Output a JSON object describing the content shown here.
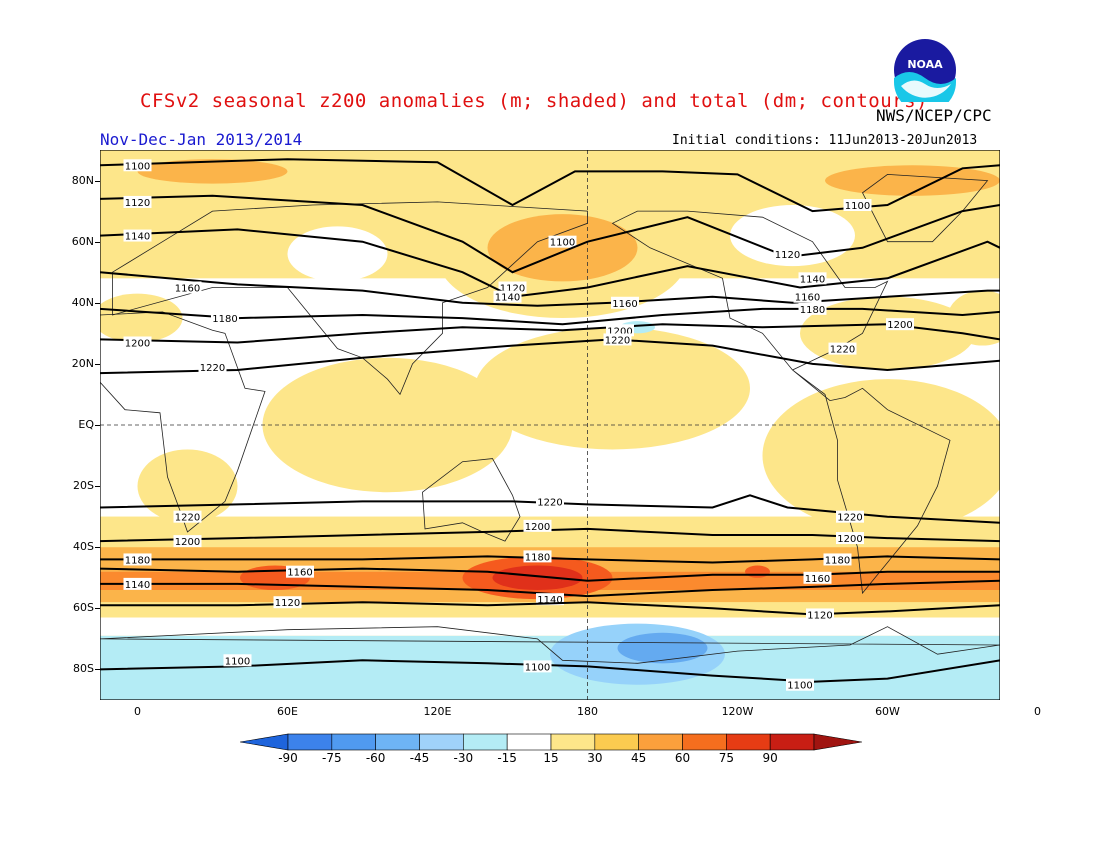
{
  "header": {
    "title": "CFSv2 seasonal z200 anomalies (m; shaded) and total (dm; contours)",
    "agency": "NWS/NCEP/CPC",
    "season": "Nov-Dec-Jan 2013/2014",
    "initial_conditions": "Initial conditions: 11Jun2013-20Jun2013",
    "logo_text": "NOAA"
  },
  "map": {
    "projection": "cylindrical equidistant",
    "lon_range": [
      -15,
      345
    ],
    "lat_range": [
      -90,
      90
    ],
    "lat_ticks": [
      {
        "lat": 80,
        "label": "80N"
      },
      {
        "lat": 60,
        "label": "60N"
      },
      {
        "lat": 40,
        "label": "40N"
      },
      {
        "lat": 20,
        "label": "20N"
      },
      {
        "lat": 0,
        "label": "EQ"
      },
      {
        "lat": -20,
        "label": "20S"
      },
      {
        "lat": -40,
        "label": "40S"
      },
      {
        "lat": -60,
        "label": "60S"
      },
      {
        "lat": -80,
        "label": "80S"
      }
    ],
    "lon_ticks": [
      {
        "lon": 0,
        "label": "0"
      },
      {
        "lon": 60,
        "label": "60E"
      },
      {
        "lon": 120,
        "label": "120E"
      },
      {
        "lon": 180,
        "label": "180"
      },
      {
        "lon": 240,
        "label": "120W"
      },
      {
        "lon": 300,
        "label": "60W"
      },
      {
        "lon": 360,
        "label": "0"
      }
    ],
    "dashed_reference_lines": [
      "EQ",
      "180"
    ],
    "shading": {
      "default_color": "#fde68a",
      "background_bands": [
        {
          "lat_from": 90,
          "lat_to": 72,
          "color": "#fde68a"
        },
        {
          "lat_from": 72,
          "lat_to": 48,
          "color": "#fde68a"
        },
        {
          "lat_from": 48,
          "lat_to": -30,
          "color": "#ffffff"
        },
        {
          "lat_from": -30,
          "lat_to": -40,
          "color": "#fde68a"
        },
        {
          "lat_from": -40,
          "lat_to": -48,
          "color": "#fbb44a"
        },
        {
          "lat_from": -48,
          "lat_to": -54,
          "color": "#fb8a2e"
        },
        {
          "lat_from": -54,
          "lat_to": -58,
          "color": "#fbb44a"
        },
        {
          "lat_from": -58,
          "lat_to": -63,
          "color": "#fde68a"
        },
        {
          "lat_from": -63,
          "lat_to": -69,
          "color": "#ffffff"
        },
        {
          "lat_from": -69,
          "lat_to": -90,
          "color": "#b4ecf5"
        }
      ],
      "anomaly_blobs": [
        {
          "lon": 100,
          "lat": 0,
          "rlon": 50,
          "rlat": 22,
          "color": "#fde68a"
        },
        {
          "lon": 190,
          "lat": 12,
          "rlon": 55,
          "rlat": 20,
          "color": "#fde68a"
        },
        {
          "lon": 170,
          "lat": 55,
          "rlon": 50,
          "rlat": 20,
          "color": "#fde68a"
        },
        {
          "lon": 170,
          "lat": 58,
          "rlon": 30,
          "rlat": 11,
          "color": "#fbb44a"
        },
        {
          "lon": 300,
          "lat": -10,
          "rlon": 50,
          "rlat": 25,
          "color": "#fde68a"
        },
        {
          "lon": 20,
          "lat": -20,
          "rlon": 20,
          "rlat": 12,
          "color": "#fde68a"
        },
        {
          "lon": 0,
          "lat": 35,
          "rlon": 18,
          "rlat": 8,
          "color": "#fde68a"
        },
        {
          "lon": 300,
          "lat": 30,
          "rlon": 35,
          "rlat": 12,
          "color": "#fde68a"
        },
        {
          "lon": 338,
          "lat": 35,
          "rlon": 14,
          "rlat": 9,
          "color": "#fde68a"
        },
        {
          "lon": 310,
          "lat": 80,
          "rlon": 35,
          "rlat": 5,
          "color": "#fbb44a"
        },
        {
          "lon": 30,
          "lat": 83,
          "rlon": 30,
          "rlat": 4,
          "color": "#fbb44a"
        },
        {
          "lon": 262,
          "lat": 62,
          "rlon": 25,
          "rlat": 10,
          "color": "#ffffff"
        },
        {
          "lon": 80,
          "lat": 56,
          "rlon": 20,
          "rlat": 9,
          "color": "#ffffff"
        },
        {
          "lon": 55,
          "lat": -50,
          "rlon": 14,
          "rlat": 4,
          "color": "#f55a1e"
        },
        {
          "lon": 160,
          "lat": -50,
          "rlon": 30,
          "rlat": 7,
          "color": "#f55a1e"
        },
        {
          "lon": 160,
          "lat": -50,
          "rlon": 18,
          "rlat": 4,
          "color": "#e0301a"
        },
        {
          "lon": 248,
          "lat": -48,
          "rlon": 5,
          "rlat": 2,
          "color": "#f55a1e"
        },
        {
          "lon": 200,
          "lat": 32,
          "rlon": 7,
          "rlat": 2,
          "color": "#b4ecf5"
        },
        {
          "lon": 200,
          "lat": -75,
          "rlon": 35,
          "rlat": 10,
          "color": "#96d2fa"
        },
        {
          "lon": 210,
          "lat": -73,
          "rlon": 18,
          "rlat": 5,
          "color": "#64aaf0"
        }
      ]
    },
    "contours_dm": [
      {
        "value": 1100,
        "label": "1100",
        "points": [
          [
            -15,
            85
          ],
          [
            60,
            87
          ],
          [
            120,
            86
          ],
          [
            150,
            72
          ],
          [
            175,
            83
          ],
          [
            210,
            83
          ],
          [
            240,
            82
          ],
          [
            270,
            70
          ],
          [
            300,
            72
          ],
          [
            330,
            84
          ],
          [
            345,
            85
          ]
        ],
        "label_at": [
          [
            0,
            85
          ],
          [
            170,
            60
          ],
          [
            288,
            72
          ]
        ]
      },
      {
        "value": 1120,
        "label": "1120",
        "points": [
          [
            -15,
            74
          ],
          [
            30,
            75
          ],
          [
            90,
            72
          ],
          [
            130,
            60
          ],
          [
            150,
            50
          ],
          [
            180,
            60
          ],
          [
            220,
            68
          ],
          [
            260,
            55
          ],
          [
            290,
            58
          ],
          [
            330,
            70
          ],
          [
            345,
            72
          ]
        ],
        "label_at": [
          [
            0,
            73
          ],
          [
            150,
            45
          ],
          [
            260,
            56
          ]
        ]
      },
      {
        "value": 1140,
        "label": "1140",
        "points": [
          [
            -15,
            62
          ],
          [
            40,
            64
          ],
          [
            90,
            60
          ],
          [
            130,
            50
          ],
          [
            150,
            42
          ],
          [
            180,
            45
          ],
          [
            220,
            52
          ],
          [
            265,
            45
          ],
          [
            300,
            48
          ],
          [
            340,
            60
          ],
          [
            345,
            58
          ]
        ],
        "label_at": [
          [
            0,
            62
          ],
          [
            148,
            42
          ],
          [
            270,
            48
          ]
        ]
      },
      {
        "value": 1160,
        "label": "1160",
        "points": [
          [
            -15,
            50
          ],
          [
            40,
            46
          ],
          [
            90,
            44
          ],
          [
            130,
            40
          ],
          [
            160,
            39
          ],
          [
            190,
            40
          ],
          [
            230,
            42
          ],
          [
            262,
            40
          ],
          [
            300,
            42
          ],
          [
            340,
            44
          ],
          [
            345,
            44
          ]
        ],
        "label_at": [
          [
            20,
            45
          ],
          [
            195,
            40
          ],
          [
            268,
            42
          ]
        ]
      },
      {
        "value": 1180,
        "label": "1180",
        "points": [
          [
            -15,
            38
          ],
          [
            40,
            35
          ],
          [
            90,
            36
          ],
          [
            130,
            35
          ],
          [
            170,
            33
          ],
          [
            210,
            36
          ],
          [
            250,
            38
          ],
          [
            290,
            38
          ],
          [
            330,
            36
          ],
          [
            345,
            37
          ]
        ],
        "label_at": [
          [
            35,
            35
          ],
          [
            270,
            38
          ]
        ]
      },
      {
        "value": 1200,
        "label": "1200",
        "points": [
          [
            -15,
            28
          ],
          [
            40,
            27
          ],
          [
            90,
            30
          ],
          [
            130,
            32
          ],
          [
            170,
            31
          ],
          [
            210,
            33
          ],
          [
            250,
            32
          ],
          [
            300,
            33
          ],
          [
            330,
            30
          ],
          [
            345,
            28
          ]
        ],
        "label_at": [
          [
            0,
            27
          ],
          [
            193,
            31
          ],
          [
            305,
            33
          ]
        ]
      },
      {
        "value": 1220,
        "label": "1220",
        "points": [
          [
            -15,
            17
          ],
          [
            40,
            18
          ],
          [
            90,
            22
          ],
          [
            150,
            26
          ],
          [
            190,
            28
          ],
          [
            230,
            26
          ],
          [
            270,
            20
          ],
          [
            300,
            18
          ],
          [
            330,
            20
          ],
          [
            345,
            21
          ]
        ],
        "label_at": [
          [
            30,
            19
          ],
          [
            192,
            28
          ],
          [
            282,
            25
          ]
        ]
      },
      {
        "value": 1220,
        "label": "1220",
        "points": [
          [
            -15,
            -27
          ],
          [
            40,
            -26
          ],
          [
            90,
            -25
          ],
          [
            150,
            -25
          ],
          [
            180,
            -26
          ],
          [
            230,
            -27
          ],
          [
            245,
            -23
          ],
          [
            260,
            -27
          ],
          [
            300,
            -30
          ],
          [
            345,
            -32
          ]
        ],
        "label_at": [
          [
            20,
            -30
          ],
          [
            165,
            -25
          ],
          [
            285,
            -30
          ]
        ]
      },
      {
        "value": 1200,
        "label": "1200",
        "points": [
          [
            -15,
            -38
          ],
          [
            40,
            -37
          ],
          [
            90,
            -36
          ],
          [
            140,
            -35
          ],
          [
            180,
            -34
          ],
          [
            230,
            -36
          ],
          [
            270,
            -36
          ],
          [
            300,
            -37
          ],
          [
            345,
            -38
          ]
        ],
        "label_at": [
          [
            20,
            -38
          ],
          [
            160,
            -33
          ],
          [
            285,
            -37
          ]
        ]
      },
      {
        "value": 1180,
        "label": "1180",
        "points": [
          [
            -15,
            -44
          ],
          [
            40,
            -44
          ],
          [
            90,
            -44
          ],
          [
            140,
            -43
          ],
          [
            180,
            -44
          ],
          [
            230,
            -45
          ],
          [
            270,
            -44
          ],
          [
            300,
            -43
          ],
          [
            345,
            -44
          ]
        ],
        "label_at": [
          [
            0,
            -44
          ],
          [
            160,
            -43
          ],
          [
            280,
            -44
          ]
        ]
      },
      {
        "value": 1160,
        "label": "1160",
        "points": [
          [
            -15,
            -47
          ],
          [
            40,
            -48
          ],
          [
            90,
            -47
          ],
          [
            140,
            -48
          ],
          [
            180,
            -51
          ],
          [
            230,
            -49
          ],
          [
            270,
            -49
          ],
          [
            300,
            -48
          ],
          [
            345,
            -48
          ]
        ],
        "label_at": [
          [
            65,
            -48
          ],
          [
            272,
            -50
          ]
        ]
      },
      {
        "value": 1140,
        "label": "1140",
        "points": [
          [
            -15,
            -52
          ],
          [
            40,
            -52
          ],
          [
            90,
            -53
          ],
          [
            140,
            -54
          ],
          [
            180,
            -56
          ],
          [
            230,
            -54
          ],
          [
            270,
            -53
          ],
          [
            300,
            -52
          ],
          [
            345,
            -51
          ]
        ],
        "label_at": [
          [
            0,
            -52
          ],
          [
            165,
            -57
          ]
        ]
      },
      {
        "value": 1120,
        "label": "1120",
        "points": [
          [
            -15,
            -59
          ],
          [
            40,
            -59
          ],
          [
            90,
            -58
          ],
          [
            140,
            -59
          ],
          [
            180,
            -58
          ],
          [
            230,
            -60
          ],
          [
            270,
            -62
          ],
          [
            300,
            -61
          ],
          [
            345,
            -59
          ]
        ],
        "label_at": [
          [
            60,
            -58
          ],
          [
            273,
            -62
          ]
        ]
      },
      {
        "value": 1100,
        "label": "1100",
        "points": [
          [
            -15,
            -80
          ],
          [
            40,
            -79
          ],
          [
            90,
            -77
          ],
          [
            140,
            -78
          ],
          [
            180,
            -79
          ],
          [
            230,
            -82
          ],
          [
            270,
            -84
          ],
          [
            300,
            -83
          ],
          [
            345,
            -77
          ]
        ],
        "label_at": [
          [
            40,
            -77
          ],
          [
            160,
            -79
          ],
          [
            265,
            -85
          ]
        ]
      }
    ]
  },
  "colorbar": {
    "labels": [
      "-90",
      "-75",
      "-60",
      "-45",
      "-30",
      "-15",
      "15",
      "30",
      "45",
      "60",
      "75",
      "90"
    ],
    "colors": [
      "#1e64dc",
      "#3c82eb",
      "#509af0",
      "#6eb4f5",
      "#a0d2fa",
      "#b4ecf5",
      "#ffffff",
      "#fde68a",
      "#fbcb50",
      "#fba03c",
      "#f56e1e",
      "#e63c14",
      "#c81e14",
      "#a01410"
    ]
  }
}
